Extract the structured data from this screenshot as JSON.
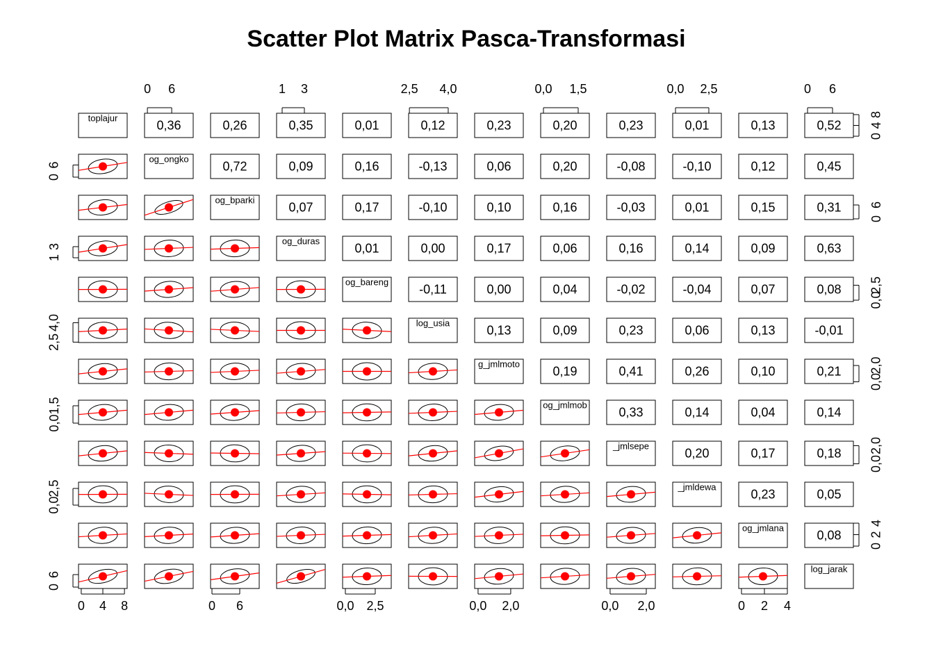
{
  "chart_data": {
    "type": "scatter_matrix",
    "title": "Scatter Plot Matrix Pasca-Transformasi",
    "variables": [
      {
        "name": "toplajur",
        "range": [
          -0.5,
          8.5
        ],
        "ticks": [
          0,
          4,
          8
        ]
      },
      {
        "name": "og_ongko",
        "range": [
          -0.7,
          11.3
        ],
        "ticks": [
          0,
          6
        ]
      },
      {
        "name": "og_bparki",
        "range": [
          -0.3,
          10.2
        ],
        "ticks": [
          0,
          6
        ]
      },
      {
        "name": "og_duras",
        "range": [
          0.5,
          4.875
        ],
        "ticks": [
          1,
          3
        ]
      },
      {
        "name": "og_bareng",
        "range": [
          -0.23,
          3.84
        ],
        "ticks": [
          {
            "value": 0,
            "label": "0,0"
          },
          {
            "value": 2.5,
            "label": "2,5"
          }
        ]
      },
      {
        "name": "log_usia",
        "range": [
          2.47,
          4.35
        ],
        "ticks": [
          {
            "value": 2.5,
            "label": "2,5"
          },
          {
            "value": 4,
            "label": "4,0"
          }
        ]
      },
      {
        "name": "g_jmlmoto",
        "range": [
          -0.21,
          2.77
        ],
        "ticks": [
          {
            "value": 0,
            "label": "0,0"
          },
          {
            "value": 2,
            "label": "2,0"
          }
        ]
      },
      {
        "name": "og_jmlmob",
        "range": [
          -0.12,
          1.98
        ],
        "ticks": [
          {
            "value": 0,
            "label": "0,0"
          },
          {
            "value": 1.5,
            "label": "1,5"
          }
        ]
      },
      {
        "name": "_jmlsepe",
        "range": [
          -0.19,
          2.5
        ],
        "ticks": [
          {
            "value": 0,
            "label": "0,0"
          },
          {
            "value": 2,
            "label": "2,0"
          }
        ]
      },
      {
        "name": "_jmldewa",
        "range": [
          -0.21,
          3.44
        ],
        "ticks": [
          {
            "value": 0,
            "label": "0,0"
          },
          {
            "value": 2.5,
            "label": "2,5"
          }
        ]
      },
      {
        "name": "og_jmlana",
        "range": [
          -0.24,
          4.0
        ],
        "ticks": [
          0,
          2,
          4
        ]
      },
      {
        "name": "log_jarak",
        "range": [
          -0.67,
          11
        ],
        "ticks": [
          0,
          6
        ]
      }
    ],
    "correlations": [
      [
        {
          "value": 0.36,
          "label": "0,36"
        },
        {
          "value": 0.26,
          "label": "0,26"
        },
        {
          "value": 0.35,
          "label": "0,35"
        },
        {
          "value": 0.01,
          "label": "0,01"
        },
        {
          "value": 0.12,
          "label": "0,12"
        },
        {
          "value": 0.23,
          "label": "0,23"
        },
        {
          "value": 0.2,
          "label": "0,20"
        },
        {
          "value": 0.23,
          "label": "0,23"
        },
        {
          "value": 0.01,
          "label": "0,01"
        },
        {
          "value": 0.13,
          "label": "0,13"
        },
        {
          "value": 0.52,
          "label": "0,52"
        }
      ],
      [
        {
          "value": 0.72,
          "label": "0,72"
        },
        {
          "value": 0.09,
          "label": "0,09"
        },
        {
          "value": 0.16,
          "label": "0,16"
        },
        {
          "value": -0.13,
          "label": "-0,13"
        },
        {
          "value": 0.06,
          "label": "0,06"
        },
        {
          "value": 0.2,
          "label": "0,20"
        },
        {
          "value": -0.08,
          "label": "-0,08"
        },
        {
          "value": -0.1,
          "label": "-0,10"
        },
        {
          "value": 0.12,
          "label": "0,12"
        },
        {
          "value": 0.45,
          "label": "0,45"
        }
      ],
      [
        {
          "value": 0.07,
          "label": "0,07"
        },
        {
          "value": 0.17,
          "label": "0,17"
        },
        {
          "value": -0.1,
          "label": "-0,10"
        },
        {
          "value": 0.1,
          "label": "0,10"
        },
        {
          "value": 0.16,
          "label": "0,16"
        },
        {
          "value": -0.03,
          "label": "-0,03"
        },
        {
          "value": 0.01,
          "label": "0,01"
        },
        {
          "value": 0.15,
          "label": "0,15"
        },
        {
          "value": 0.31,
          "label": "0,31"
        }
      ],
      [
        {
          "value": 0.01,
          "label": "0,01"
        },
        {
          "value": 0,
          "label": "0,00"
        },
        {
          "value": 0.17,
          "label": "0,17"
        },
        {
          "value": 0.06,
          "label": "0,06"
        },
        {
          "value": 0.16,
          "label": "0,16"
        },
        {
          "value": 0.14,
          "label": "0,14"
        },
        {
          "value": 0.09,
          "label": "0,09"
        },
        {
          "value": 0.63,
          "label": "0,63"
        }
      ],
      [
        {
          "value": -0.11,
          "label": "-0,11"
        },
        {
          "value": 0,
          "label": "0,00"
        },
        {
          "value": 0.04,
          "label": "0,04"
        },
        {
          "value": -0.02,
          "label": "-0,02"
        },
        {
          "value": -0.04,
          "label": "-0,04"
        },
        {
          "value": 0.07,
          "label": "0,07"
        },
        {
          "value": 0.08,
          "label": "0,08"
        }
      ],
      [
        {
          "value": 0.13,
          "label": "0,13"
        },
        {
          "value": 0.09,
          "label": "0,09"
        },
        {
          "value": 0.23,
          "label": "0,23"
        },
        {
          "value": 0.06,
          "label": "0,06"
        },
        {
          "value": 0.13,
          "label": "0,13"
        },
        {
          "value": -0.01,
          "label": "-0,01"
        }
      ],
      [
        {
          "value": 0.19,
          "label": "0,19"
        },
        {
          "value": 0.41,
          "label": "0,41"
        },
        {
          "value": 0.26,
          "label": "0,26"
        },
        {
          "value": 0.1,
          "label": "0,10"
        },
        {
          "value": 0.21,
          "label": "0,21"
        }
      ],
      [
        {
          "value": 0.33,
          "label": "0,33"
        },
        {
          "value": 0.14,
          "label": "0,14"
        },
        {
          "value": 0.04,
          "label": "0,04"
        },
        {
          "value": 0.14,
          "label": "0,14"
        }
      ],
      [
        {
          "value": 0.2,
          "label": "0,20"
        },
        {
          "value": 0.17,
          "label": "0,17"
        },
        {
          "value": 0.18,
          "label": "0,18"
        }
      ],
      [
        {
          "value": 0.23,
          "label": "0,23"
        },
        {
          "value": 0.05,
          "label": "0,05"
        }
      ],
      [
        {
          "value": 0.08,
          "label": "0,08"
        }
      ]
    ]
  }
}
